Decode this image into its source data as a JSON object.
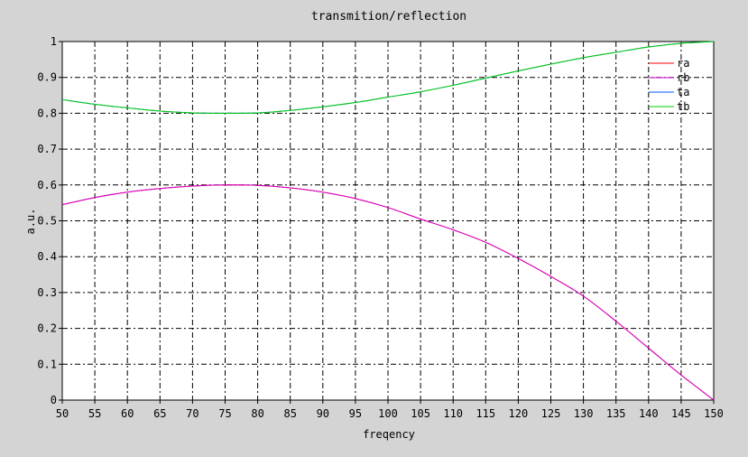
{
  "chart_data": {
    "type": "line",
    "title": "transmition/reflection",
    "xlabel": "freqency",
    "ylabel": "a.u.",
    "xlim": [
      50,
      150
    ],
    "ylim": [
      0,
      1
    ],
    "xticks": [
      "50",
      "55",
      "60",
      "65",
      "70",
      "75",
      "80",
      "85",
      "90",
      "95",
      "100",
      "105",
      "110",
      "115",
      "120",
      "125",
      "130",
      "135",
      "140",
      "145",
      "150"
    ],
    "yticks": [
      "0",
      "0.1",
      "0.2",
      "0.3",
      "0.4",
      "0.5",
      "0.6",
      "0.7",
      "0.8",
      "0.9",
      "1"
    ],
    "grid": true,
    "legend_position": "top-right",
    "x": [
      50,
      55,
      60,
      65,
      70,
      75,
      80,
      85,
      90,
      95,
      100,
      105,
      110,
      115,
      120,
      125,
      130,
      135,
      140,
      145,
      150
    ],
    "series": [
      {
        "name": "ra",
        "color": "#ff0000",
        "values": [
          0.545,
          0.565,
          0.58,
          0.59,
          0.597,
          0.6,
          0.599,
          0.592,
          0.58,
          0.562,
          0.537,
          0.505,
          0.475,
          0.44,
          0.395,
          0.345,
          0.29,
          0.22,
          0.145,
          0.07,
          0.0
        ]
      },
      {
        "name": "rb",
        "color": "#d000d0",
        "values": [
          0.545,
          0.565,
          0.58,
          0.59,
          0.597,
          0.6,
          0.599,
          0.592,
          0.58,
          0.562,
          0.537,
          0.505,
          0.475,
          0.44,
          0.395,
          0.345,
          0.29,
          0.22,
          0.145,
          0.07,
          0.0
        ]
      },
      {
        "name": "ta",
        "color": "#0055ff",
        "values": [
          0.838,
          0.825,
          0.815,
          0.806,
          0.801,
          0.8,
          0.801,
          0.808,
          0.818,
          0.83,
          0.845,
          0.86,
          0.878,
          0.898,
          0.918,
          0.937,
          0.955,
          0.97,
          0.985,
          0.995,
          1.0
        ]
      },
      {
        "name": "tb",
        "color": "#00d000",
        "values": [
          0.838,
          0.825,
          0.815,
          0.806,
          0.801,
          0.8,
          0.801,
          0.808,
          0.818,
          0.83,
          0.845,
          0.86,
          0.878,
          0.898,
          0.918,
          0.937,
          0.955,
          0.97,
          0.985,
          0.995,
          1.0
        ]
      }
    ]
  }
}
